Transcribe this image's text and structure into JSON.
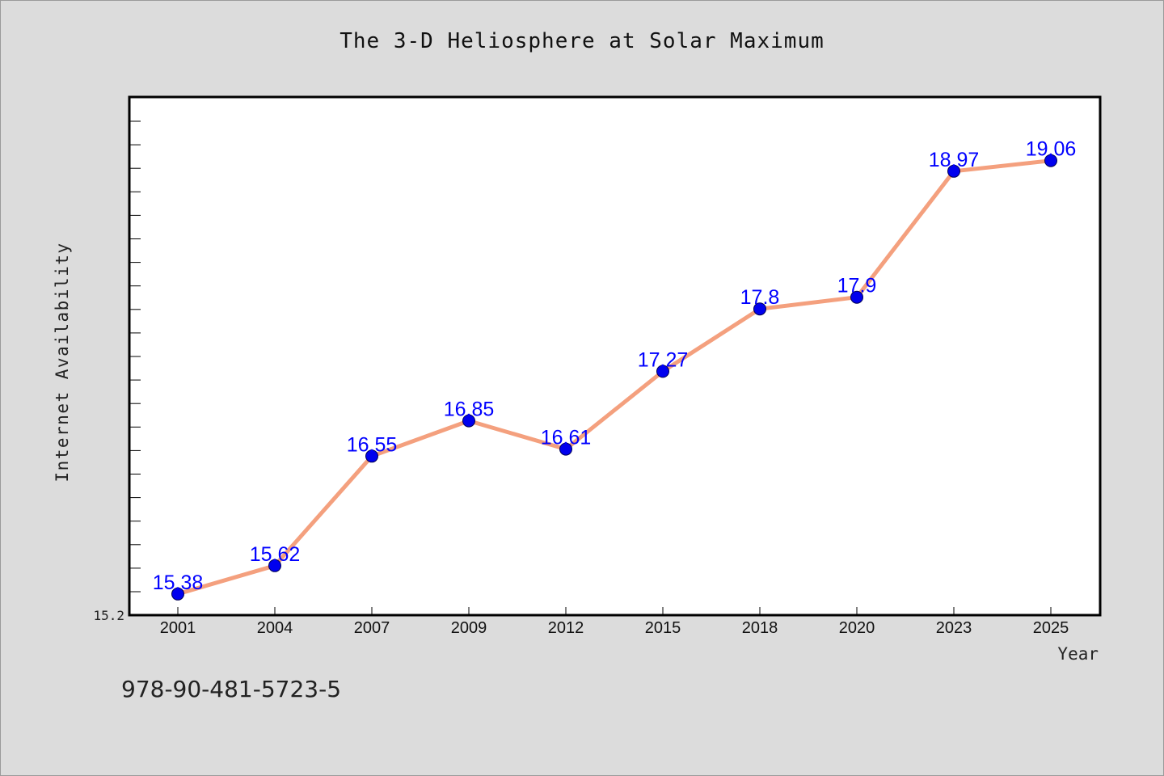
{
  "chart_data": {
    "type": "line",
    "title": "The 3-D Heliosphere at Solar Maximum",
    "xlabel": "Year",
    "ylabel": "Internet Availability",
    "categories": [
      "2001",
      "2004",
      "2007",
      "2009",
      "2012",
      "2015",
      "2018",
      "2020",
      "2023",
      "2025"
    ],
    "values": [
      15.38,
      15.62,
      16.55,
      16.85,
      16.61,
      17.27,
      17.8,
      17.9,
      18.97,
      19.06
    ],
    "data_labels": [
      "15.38",
      "15.62",
      "16.55",
      "16.85",
      "16.61",
      "17.27",
      "17.8",
      "17.9",
      "18.97",
      "19.06"
    ],
    "y_tick_label": "15.2",
    "ylim": [
      15.2,
      19.6
    ],
    "grid": false,
    "legend": "none",
    "line_color": "#f4a07e",
    "marker_color": "#0000ee",
    "label_color": "#0000ff"
  },
  "footer": {
    "isbn": "978-90-481-5723-5"
  }
}
